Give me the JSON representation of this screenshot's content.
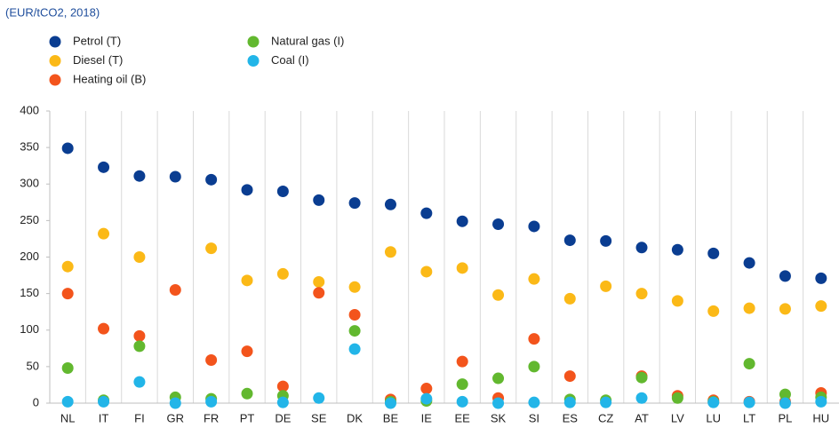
{
  "chart_data": {
    "type": "scatter",
    "subtitle": "(EUR/tCO2, 2018)",
    "categories": [
      "NL",
      "IT",
      "FI",
      "GR",
      "FR",
      "PT",
      "DE",
      "SE",
      "DK",
      "BE",
      "IE",
      "EE",
      "SK",
      "SI",
      "ES",
      "CZ",
      "AT",
      "LV",
      "LU",
      "LT",
      "PL",
      "HU"
    ],
    "series": [
      {
        "name": "Petrol (T)",
        "color": "#0a3d91",
        "values": [
          349,
          323,
          311,
          310,
          306,
          292,
          290,
          278,
          274,
          272,
          260,
          249,
          245,
          242,
          223,
          222,
          213,
          210,
          205,
          192,
          174,
          171
        ]
      },
      {
        "name": "Diesel (T)",
        "color": "#fbb917",
        "values": [
          187,
          232,
          200,
          null,
          212,
          168,
          177,
          166,
          159,
          207,
          180,
          185,
          148,
          170,
          143,
          160,
          150,
          140,
          126,
          130,
          129,
          133
        ]
      },
      {
        "name": "Heating oil (B)",
        "color": "#f3541c",
        "values": [
          150,
          102,
          92,
          155,
          59,
          71,
          23,
          151,
          121,
          5,
          20,
          57,
          7,
          88,
          37,
          null,
          37,
          10,
          4,
          2,
          2,
          14
        ]
      },
      {
        "name": "Natural gas (I)",
        "color": "#62b82f",
        "values": [
          48,
          4,
          78,
          8,
          6,
          13,
          10,
          null,
          99,
          2,
          3,
          26,
          34,
          50,
          5,
          4,
          35,
          7,
          2,
          54,
          12,
          8
        ]
      },
      {
        "name": "Coal (I)",
        "color": "#22b5e8",
        "values": [
          2,
          2,
          29,
          0,
          2,
          null,
          1,
          7,
          74,
          0,
          6,
          2,
          0,
          1,
          1,
          1,
          7,
          null,
          1,
          1,
          0,
          2
        ]
      }
    ],
    "ylim": [
      0,
      400
    ],
    "yticks": [
      0,
      50,
      100,
      150,
      200,
      250,
      300,
      350,
      400
    ],
    "grid": false
  }
}
